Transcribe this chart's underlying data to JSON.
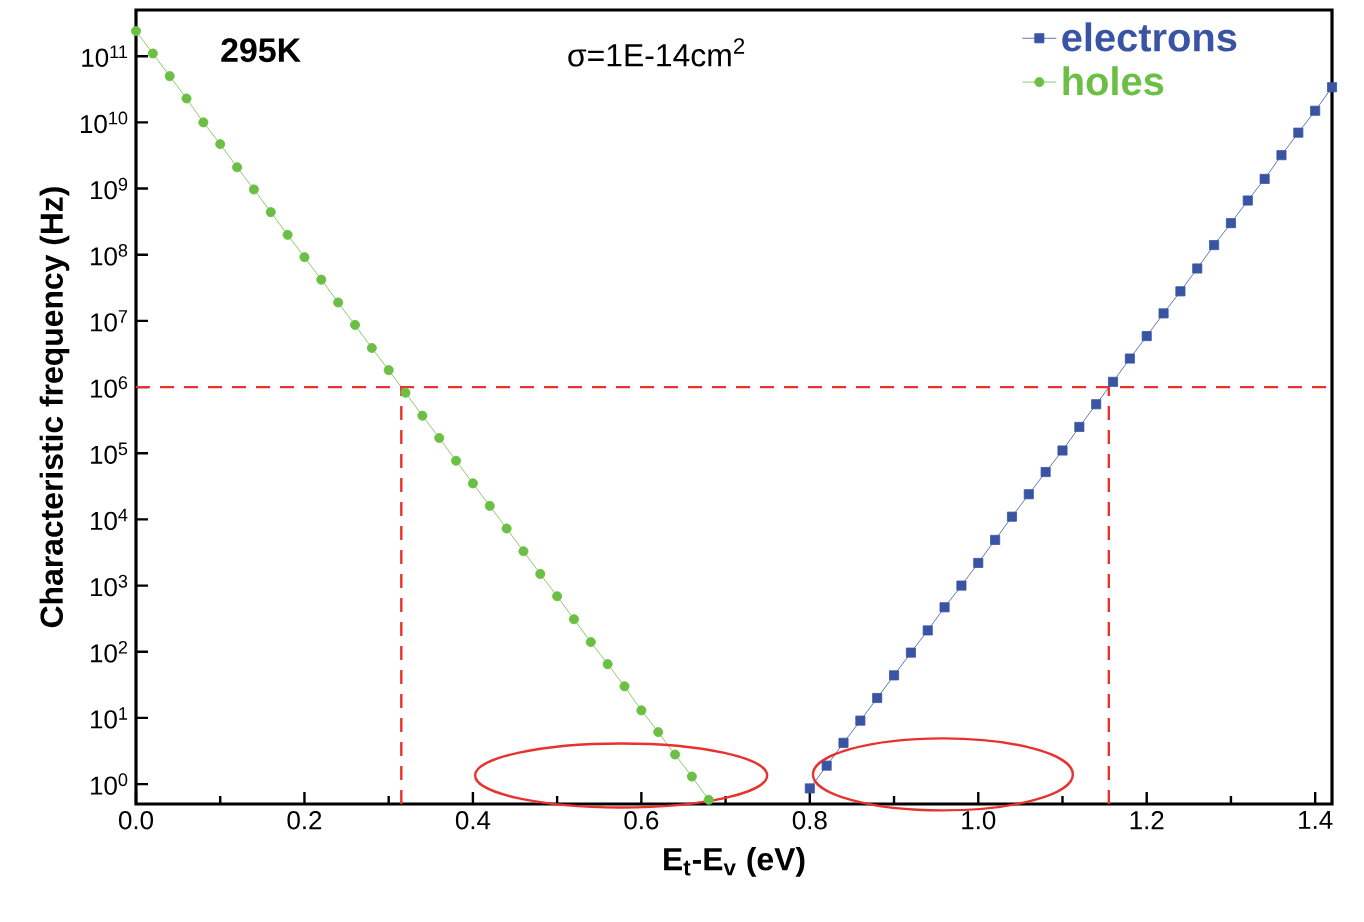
{
  "chart_data": {
    "type": "line",
    "xlabel": "E$_{t}$-E$_{v}$  (eV)",
    "ylabel": "Characteristic frequency  (Hz)",
    "annotations": [
      "**295K**",
      "σ=1E-14cm$^{2}$"
    ],
    "log": "y",
    "xlim": [
      0,
      1.42
    ],
    "ylim": [
      0.5,
      500000000000.0
    ],
    "xticks": [
      {
        "value": 0,
        "label": "0.0"
      },
      {
        "value": 0.2,
        "label": "0.2"
      },
      {
        "value": 0.4,
        "label": "0.4"
      },
      {
        "value": 0.6,
        "label": "0.6"
      },
      {
        "value": 0.8,
        "label": "0.8"
      },
      {
        "value": 1.0,
        "label": "1.0"
      },
      {
        "value": 1.2,
        "label": "1.2"
      },
      {
        "value": 1.4,
        "label": "1.4"
      }
    ],
    "yticks": [
      {
        "value": 1,
        "label": "10$^{0}$"
      },
      {
        "value": 10,
        "label": "10$^{1}$"
      },
      {
        "value": 100,
        "label": "10$^{2}$"
      },
      {
        "value": 1000,
        "label": "10$^{3}$"
      },
      {
        "value": 10000,
        "label": "10$^{4}$"
      },
      {
        "value": 100000,
        "label": "10$^{5}$"
      },
      {
        "value": 1000000,
        "label": "10$^{6}$"
      },
      {
        "value": 10000000,
        "label": "10$^{7}$"
      },
      {
        "value": 100000000,
        "label": "10$^{8}$"
      },
      {
        "value": 1000000000,
        "label": "10$^{9}$"
      },
      {
        "value": 10000000000,
        "label": "10$^{10}$"
      },
      {
        "value": 100000000000,
        "label": "10$^{11}$"
      }
    ],
    "legend": "top right",
    "grid": false,
    "ref_lines": [
      {
        "axis": "y",
        "value": 1000000,
        "color": "#e8322d",
        "line_style": "dashed"
      },
      {
        "axis": "x",
        "value": 0.315,
        "color": "#e8322d",
        "line_style": "dashed"
      },
      {
        "axis": "x",
        "value": 1.155,
        "color": "#e8322d",
        "line_style": "dashed"
      }
    ],
    "series": [
      {
        "name": "electrons",
        "color": "#3a54a4",
        "marker": "square",
        "x": [
          0.8,
          0.82,
          0.84,
          0.86,
          0.88,
          0.9,
          0.92,
          0.94,
          0.96,
          0.98,
          1.0,
          1.02,
          1.04,
          1.06,
          1.08,
          1.1,
          1.12,
          1.14,
          1.16,
          1.18,
          1.2,
          1.22,
          1.24,
          1.26,
          1.28,
          1.3,
          1.32,
          1.34,
          1.36,
          1.38,
          1.4,
          1.42
        ],
        "values": [
          0.86,
          1.9,
          4.2,
          9.1,
          20,
          44,
          97,
          210,
          470,
          1000,
          2200,
          4900,
          11000,
          24000,
          52000,
          110000,
          250000,
          550000,
          1200000,
          2700000,
          5900000,
          13000000,
          28000000,
          62000000,
          140000000,
          300000000,
          660000000,
          1400000000,
          3200000000,
          7000000000,
          15000000000,
          34000000000
        ]
      },
      {
        "name": "holes",
        "color": "#6cbf45",
        "marker": "circle",
        "x": [
          0.0,
          0.02,
          0.04,
          0.06,
          0.08,
          0.1,
          0.12,
          0.14,
          0.16,
          0.18,
          0.2,
          0.22,
          0.24,
          0.26,
          0.28,
          0.3,
          0.32,
          0.34,
          0.36,
          0.38,
          0.4,
          0.42,
          0.44,
          0.46,
          0.48,
          0.5,
          0.52,
          0.54,
          0.56,
          0.58,
          0.6,
          0.62,
          0.64,
          0.66,
          0.68
        ],
        "values": [
          240000000000,
          110000000000,
          50000000000,
          23000000000,
          10000000000,
          4700000000,
          2100000000,
          970000000,
          440000000,
          200000000,
          92000000,
          42000000,
          19000000,
          8700000,
          3900000,
          1800000,
          820000,
          370000,
          170000,
          77000,
          35000,
          16000,
          7300,
          3300,
          1500,
          690,
          310,
          140,
          65,
          30,
          13,
          6.1,
          2.8,
          1.3,
          0.58
        ]
      }
    ]
  }
}
